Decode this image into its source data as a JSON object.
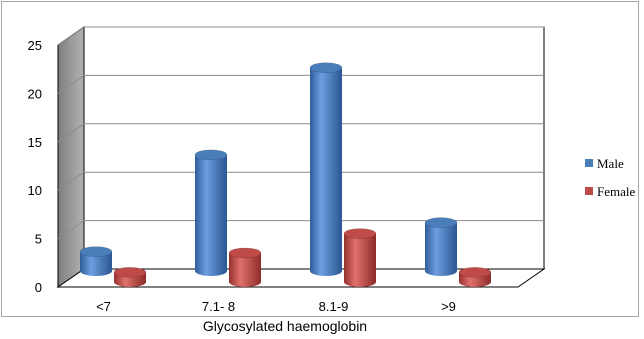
{
  "chart_data": {
    "type": "bar",
    "style": "3d-cylinder",
    "categories": [
      "<7",
      "7.1- 8",
      "8.1-9",
      ">9"
    ],
    "series": [
      {
        "name": "Male",
        "values": [
          2,
          12,
          21,
          5
        ],
        "color": "#4a7ebb"
      },
      {
        "name": "Female",
        "values": [
          1,
          3,
          5,
          1
        ],
        "color": "#be4b48"
      }
    ],
    "title": "",
    "xlabel": "Glycosylated haemoglobin",
    "ylabel": "",
    "ylim": [
      0,
      25
    ],
    "yticks": [
      0,
      5,
      10,
      15,
      20,
      25
    ],
    "grid": true,
    "legend_position": "right"
  }
}
